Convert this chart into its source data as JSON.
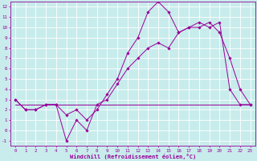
{
  "xlabel": "Windchill (Refroidissement éolien,°C)",
  "background_color": "#c8ecec",
  "grid_color": "#ffffff",
  "line_color": "#990099",
  "xlim": [
    -0.5,
    23.5
  ],
  "ylim": [
    -1.5,
    12.5
  ],
  "xticks": [
    0,
    1,
    2,
    3,
    4,
    5,
    6,
    7,
    8,
    9,
    10,
    11,
    12,
    13,
    14,
    15,
    16,
    17,
    18,
    19,
    20,
    21,
    22,
    23
  ],
  "yticks": [
    -1,
    0,
    1,
    2,
    3,
    4,
    5,
    6,
    7,
    8,
    9,
    10,
    11,
    12
  ],
  "line1_x": [
    0,
    1,
    2,
    3,
    4,
    5,
    6,
    7,
    8,
    9,
    10,
    11,
    12,
    13,
    14,
    15,
    16,
    17,
    18,
    19,
    20,
    21,
    22,
    23
  ],
  "line1_y": [
    3,
    2,
    2,
    2.5,
    2.5,
    1.5,
    2,
    1,
    2,
    3.5,
    5,
    7.5,
    9,
    11.5,
    12.5,
    11.5,
    9.5,
    10,
    10.5,
    10,
    10.5,
    4,
    2.5,
    2.5
  ],
  "line2_x": [
    0,
    1,
    2,
    3,
    4,
    5,
    6,
    7,
    8,
    9,
    10,
    11,
    12,
    13,
    14,
    15,
    16,
    17,
    18,
    19,
    20,
    21,
    22,
    23
  ],
  "line2_y": [
    3,
    2,
    2,
    2.5,
    2.5,
    -1,
    1,
    0,
    2.5,
    3,
    4.5,
    6,
    7,
    8,
    8.5,
    8,
    9.5,
    10,
    10,
    10.5,
    9.5,
    7,
    4,
    2.5
  ],
  "line3_x": [
    0,
    23
  ],
  "line3_y": [
    2.5,
    2.5
  ],
  "tick_fontsize": 4.2,
  "xlabel_fontsize": 5.0,
  "marker_size": 1.8,
  "line_width": 0.7
}
